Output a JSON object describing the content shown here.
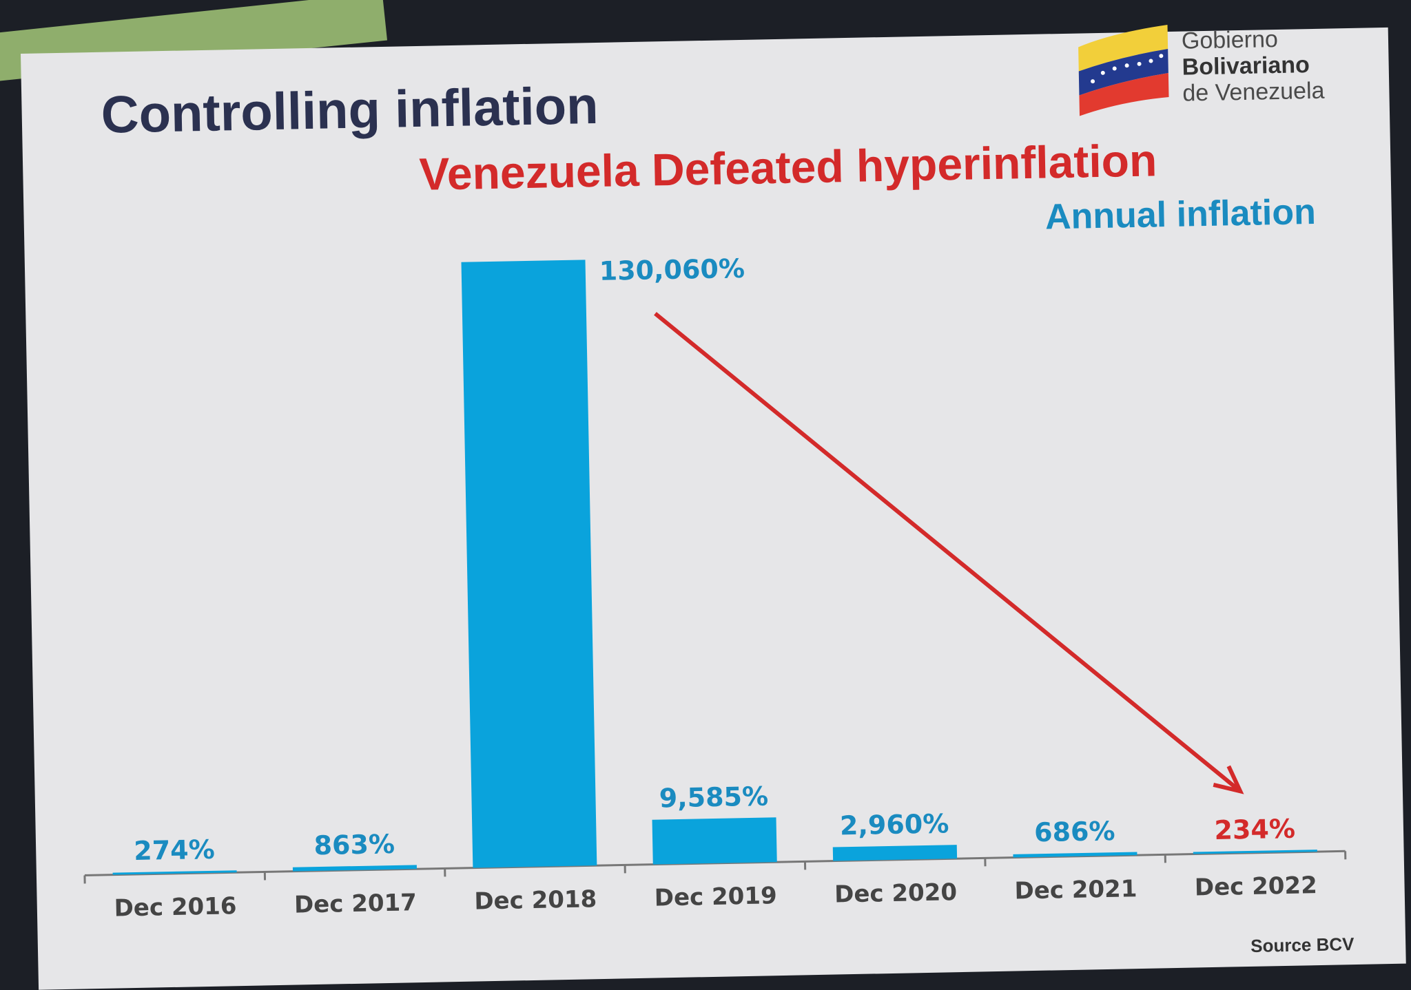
{
  "slide": {
    "title": "Controlling inflation",
    "subtitle": "Venezuela  Defeated hyperinflation",
    "logo": {
      "line1": "Gobierno",
      "line2": "Bolivariano",
      "line3": "de Venezuela"
    },
    "source": "Source  BCV"
  },
  "colors": {
    "bar": "#0aa3dc",
    "label": "#1a8bc0",
    "highlight": "#d32a2a",
    "axis": "#777777"
  },
  "chart_data": {
    "type": "bar",
    "title": "Annual inflation",
    "xlabel": "",
    "ylabel": "",
    "categories": [
      "Dec 2016",
      "Dec 2017",
      "Dec 2018",
      "Dec 2019",
      "Dec 2020",
      "Dec 2021",
      "Dec 2022"
    ],
    "values": [
      274,
      863,
      130060,
      9585,
      2960,
      686,
      234
    ],
    "data_labels": [
      "274%",
      "863%",
      "130,060%",
      "9,585%",
      "2,960%",
      "686%",
      "234%"
    ],
    "ylim": [
      0,
      130060
    ],
    "grid": false,
    "annotations": [
      "red arrow from Dec 2018 peak down to Dec 2022"
    ]
  }
}
